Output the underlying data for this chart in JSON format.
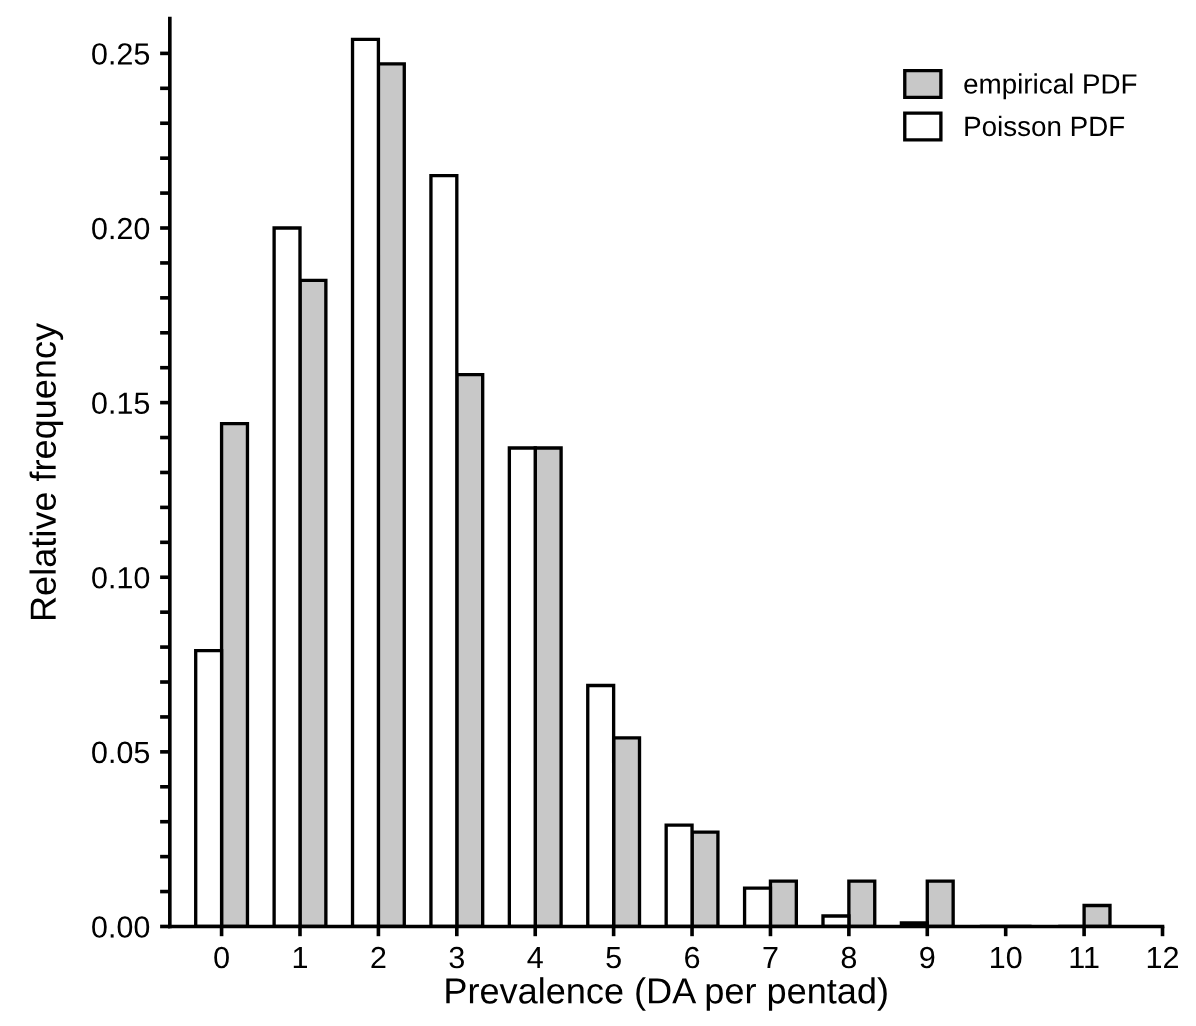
{
  "chart_data": {
    "type": "bar",
    "xlabel": "Prevalence (DA per pentad)",
    "ylabel": "Relative frequency",
    "x": [
      0,
      1,
      2,
      3,
      4,
      5,
      6,
      7,
      8,
      9,
      10,
      11
    ],
    "series": [
      {
        "name": "empirical PDF",
        "color": "#c8c8c8",
        "values": [
          0.144,
          0.185,
          0.247,
          0.158,
          0.137,
          0.054,
          0.027,
          0.013,
          0.013,
          0.013,
          0,
          0.006
        ]
      },
      {
        "name": "Poisson PDF",
        "color": "#ffffff",
        "values": [
          0.079,
          0.2,
          0.254,
          0.215,
          0.137,
          0.069,
          0.029,
          0.011,
          0.003,
          0.001,
          0,
          0
        ]
      }
    ],
    "xlim": [
      -0.66,
      12
    ],
    "xticks": [
      0,
      1,
      2,
      3,
      4,
      5,
      6,
      7,
      8,
      9,
      10,
      11,
      12
    ],
    "ylim": [
      0,
      0.26
    ],
    "yticks": [
      {
        "value": 0,
        "label": "0.00"
      },
      {
        "value": 0.01,
        "label": null
      },
      {
        "value": 0.02,
        "label": null
      },
      {
        "value": 0.03,
        "label": null
      },
      {
        "value": 0.04,
        "label": null
      },
      {
        "value": 0.05,
        "label": "0.05"
      },
      {
        "value": 0.06,
        "label": null
      },
      {
        "value": 0.07,
        "label": null
      },
      {
        "value": 0.08,
        "label": null
      },
      {
        "value": 0.09,
        "label": null
      },
      {
        "value": 0.1,
        "label": "0.10"
      },
      {
        "value": 0.11,
        "label": null
      },
      {
        "value": 0.12,
        "label": null
      },
      {
        "value": 0.13,
        "label": null
      },
      {
        "value": 0.14,
        "label": null
      },
      {
        "value": 0.15,
        "label": "0.15"
      },
      {
        "value": 0.16,
        "label": null
      },
      {
        "value": 0.17,
        "label": null
      },
      {
        "value": 0.18,
        "label": null
      },
      {
        "value": 0.19,
        "label": null
      },
      {
        "value": 0.2,
        "label": "0.20"
      },
      {
        "value": 0.21,
        "label": null
      },
      {
        "value": 0.22,
        "label": null
      },
      {
        "value": 0.23,
        "label": null
      },
      {
        "value": 0.24,
        "label": null
      },
      {
        "value": 0.25,
        "label": "0.25"
      }
    ],
    "grid": false,
    "legend": "top right"
  }
}
